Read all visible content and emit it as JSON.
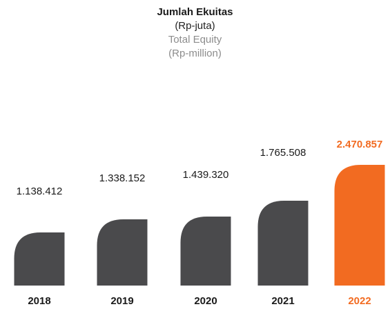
{
  "header": {
    "title": "Jumlah Ekuitas",
    "unit": "(Rp-juta)",
    "title_en": "Total Equity",
    "unit_en": "(Rp-million)"
  },
  "colors": {
    "bar": "#4a4a4c",
    "highlight": "#f26b21"
  },
  "chart_data": {
    "type": "bar",
    "title": "Jumlah Ekuitas",
    "subtitle": "(Rp-juta) Total Equity (Rp-million)",
    "categories": [
      "2018",
      "2019",
      "2020",
      "2021",
      "2022"
    ],
    "values": [
      1138412,
      1338152,
      1439320,
      1765508,
      2470857
    ],
    "value_labels": [
      "1.138.412",
      "1.338.152",
      "1.439.320",
      "1.765.508",
      "2.470.857"
    ],
    "highlight_index": 4,
    "xlabel": "",
    "ylabel": "",
    "grid": false,
    "legend": "none"
  }
}
